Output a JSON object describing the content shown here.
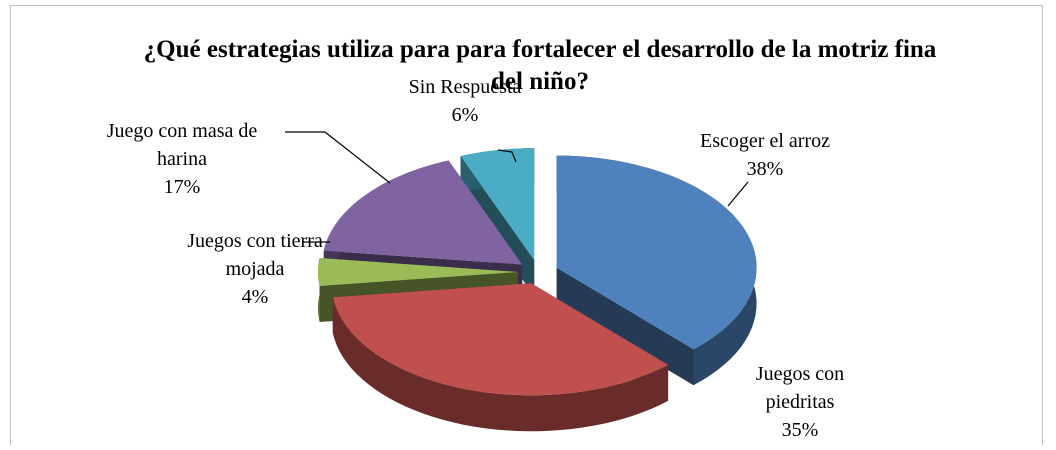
{
  "chart_data": {
    "type": "pie",
    "title": "¿Qué estrategias utiliza para para fortalecer el desarrollo de la motriz fina del niño?",
    "categories": [
      "Escoger el arroz",
      "Juegos con piedritas",
      "Juegos con tierra mojada",
      "Juego con masa de harina",
      "Sin Respuesta"
    ],
    "values": [
      38,
      35,
      4,
      17,
      6
    ],
    "value_labels": [
      "38%",
      "35%",
      "4%",
      "17%",
      "6%"
    ],
    "colors": [
      "#4f81bd",
      "#c0504d",
      "#9bbb59",
      "#8064a2",
      "#4bacc6"
    ]
  }
}
